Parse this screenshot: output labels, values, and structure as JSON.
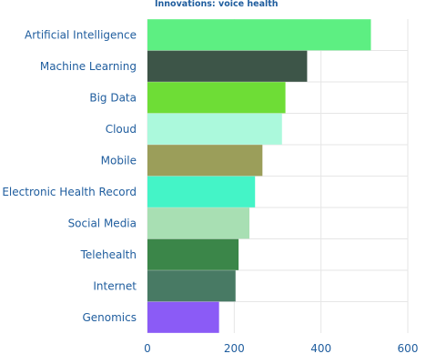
{
  "chart_data": {
    "type": "bar",
    "orientation": "horizontal",
    "title": "Innovations: voice health",
    "xlabel": "",
    "ylabel": "",
    "xlim": [
      0,
      600
    ],
    "x_ticks": [
      0,
      200,
      400,
      600
    ],
    "grid": true,
    "categories": [
      "Artificial Intelligence",
      "Machine Learning",
      "Big Data",
      "Cloud",
      "Mobile",
      "Electronic Health Record",
      "Social Media",
      "Telehealth",
      "Internet",
      "Genomics"
    ],
    "values": [
      515,
      368,
      318,
      310,
      265,
      248,
      235,
      210,
      203,
      165
    ],
    "colors": [
      "#5def82",
      "#3d5548",
      "#6edd36",
      "#abf9dc",
      "#9b9e5a",
      "#44f4c7",
      "#a8dfb3",
      "#3b8649",
      "#487a64",
      "#8b5bf6"
    ]
  },
  "colors": {
    "text": "#1f5d9e",
    "grid": "#e6e6e6"
  }
}
